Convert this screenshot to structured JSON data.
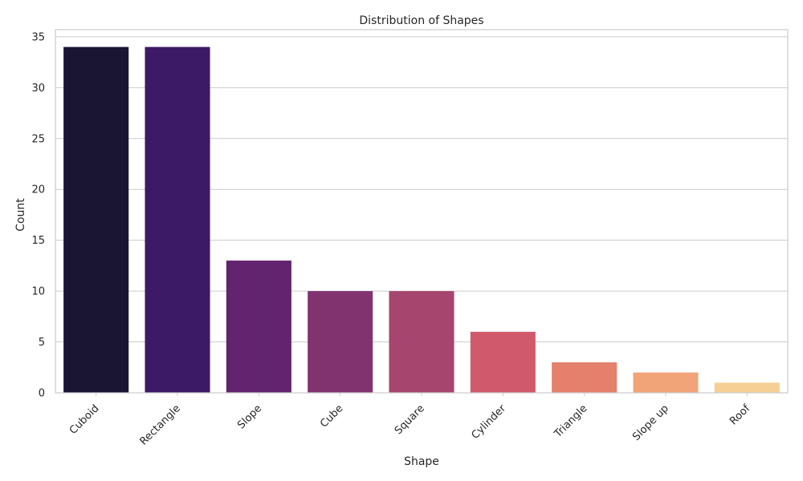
{
  "chart_data": {
    "type": "bar",
    "title": "Distribution of Shapes",
    "xlabel": "Shape",
    "ylabel": "Count",
    "categories": [
      "Cuboid",
      "Rectangle",
      "Slope",
      "Cube",
      "Square",
      "Cylinder",
      "Triangle",
      "Slope up",
      "Roof"
    ],
    "values": [
      34,
      34,
      13,
      10,
      10,
      6,
      3,
      2,
      1
    ],
    "colors": [
      "#1b1534",
      "#3d1a66",
      "#62236f",
      "#81336f",
      "#a6456e",
      "#d05a6b",
      "#e4806c",
      "#f0a478",
      "#f6cf94"
    ],
    "ylim": [
      0,
      35.7
    ],
    "yticks": [
      0,
      5,
      10,
      15,
      20,
      25,
      30,
      35
    ],
    "grid": "y",
    "x_tick_rotation": -45
  }
}
